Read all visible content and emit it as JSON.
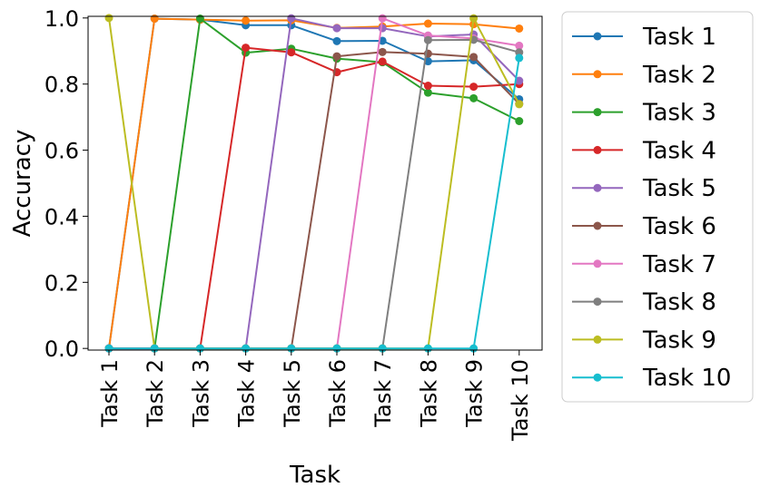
{
  "chart_data": {
    "type": "line",
    "title": "",
    "xlabel": "Task",
    "ylabel": "Accuracy",
    "categories": [
      "Task 1",
      "Task 2",
      "Task 3",
      "Task 4",
      "Task 5",
      "Task 6",
      "Task 7",
      "Task 8",
      "Task 9",
      "Task 10"
    ],
    "ylim": [
      -0.005,
      1.005
    ],
    "yticks": [
      0.0,
      0.2,
      0.4,
      0.6,
      0.8,
      1.0
    ],
    "ytick_labels": [
      "0.0",
      "0.2",
      "0.4",
      "0.6",
      "0.8",
      "1.0"
    ],
    "grid": false,
    "legend_position": "outside-right",
    "series": [
      {
        "name": "Task 1",
        "color": "#1f77b4",
        "values": [
          0,
          0.998,
          0.995,
          0.978,
          0.978,
          0.93,
          0.931,
          0.869,
          0.872,
          0.754
        ]
      },
      {
        "name": "Task 2",
        "color": "#ff7f0e",
        "values": [
          0,
          0.998,
          0.995,
          0.992,
          0.993,
          0.97,
          0.974,
          0.983,
          0.981,
          0.968
        ]
      },
      {
        "name": "Task 3",
        "color": "#2ca02c",
        "values": [
          0,
          0,
          0.998,
          0.895,
          0.907,
          0.877,
          0.866,
          0.774,
          0.757,
          0.688
        ]
      },
      {
        "name": "Task 4",
        "color": "#d62728",
        "values": [
          0,
          0,
          0,
          0.91,
          0.896,
          0.836,
          0.868,
          0.795,
          0.792,
          0.8
        ]
      },
      {
        "name": "Task 5",
        "color": "#9467bd",
        "values": [
          0,
          0,
          0,
          0,
          0.999,
          0.969,
          0.969,
          0.944,
          0.95,
          0.81
        ]
      },
      {
        "name": "Task 6",
        "color": "#8c564b",
        "values": [
          0,
          0,
          0,
          0,
          0,
          0.884,
          0.897,
          0.892,
          0.882,
          0.74
        ]
      },
      {
        "name": "Task 7",
        "color": "#e377c2",
        "values": [
          0,
          0,
          0,
          0,
          0,
          0,
          0.999,
          0.947,
          0.938,
          0.916
        ]
      },
      {
        "name": "Task 8",
        "color": "#7f7f7f",
        "values": [
          0,
          0,
          0,
          0,
          0,
          0,
          0,
          0.933,
          0.934,
          0.896
        ]
      },
      {
        "name": "Task 9",
        "color": "#bcbd22",
        "values": [
          1.0,
          0,
          0,
          0,
          0,
          0,
          0,
          0,
          0.999,
          0.739
        ]
      },
      {
        "name": "Task 10",
        "color": "#17becf",
        "values": [
          0,
          0,
          0,
          0,
          0,
          0,
          0,
          0,
          0,
          0.879
        ]
      }
    ]
  }
}
